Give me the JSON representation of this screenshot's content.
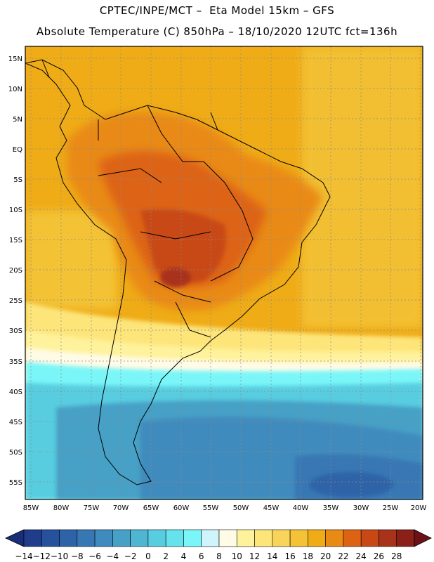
{
  "header": {
    "line1": "CPTEC/INPE/MCT –  Eta Model 15km – GFS",
    "line2": "Absolute Temperature (C) 850hPa – 18/10/2020 12UTC fct=136h"
  },
  "axes": {
    "lat_ticks": [
      "15N",
      "10N",
      "5N",
      "EQ",
      "5S",
      "10S",
      "15S",
      "20S",
      "25S",
      "30S",
      "35S",
      "40S",
      "45S",
      "50S",
      "55S"
    ],
    "lon_ticks": [
      "85W",
      "80W",
      "75W",
      "70W",
      "65W",
      "60W",
      "55W",
      "50W",
      "45W",
      "40W",
      "35W",
      "30W",
      "25W",
      "20W"
    ]
  },
  "colorbar": {
    "labels": [
      "-14",
      "-12",
      "-10",
      "-8",
      "-6",
      "-4",
      "-2",
      "0",
      "2",
      "4",
      "6",
      "8",
      "10",
      "12",
      "14",
      "16",
      "18",
      "20",
      "22",
      "24",
      "26",
      "28"
    ],
    "colors": [
      "#1f3d8a",
      "#26519c",
      "#2e63a8",
      "#3777b4",
      "#3f8bbd",
      "#47a0c6",
      "#4fb6d2",
      "#58cde0",
      "#64e3ec",
      "#7af6f8",
      "#cff4fb",
      "#fffbe6",
      "#fff29c",
      "#fde57a",
      "#f9d45a",
      "#f3c236",
      "#efac17",
      "#e98a14",
      "#dd6313",
      "#c84815",
      "#a8321a",
      "#8a2018"
    ],
    "under_color": "#1a2f78",
    "over_color": "#6b1218"
  }
}
